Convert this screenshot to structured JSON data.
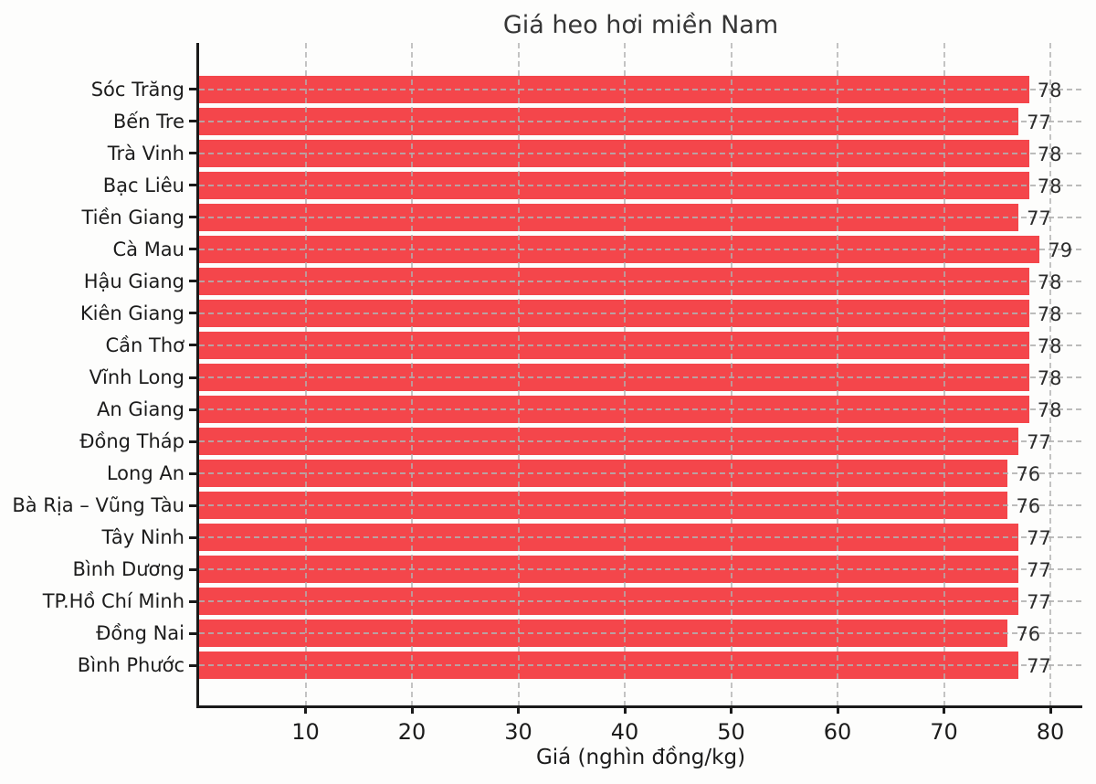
{
  "chart_data": {
    "type": "bar",
    "orientation": "horizontal",
    "title": "Giá heo hơi miền Nam",
    "xlabel": "Giá (nghìn đồng/kg)",
    "categories": [
      "Sóc Trăng",
      "Bến Tre",
      "Trà Vinh",
      "Bạc Liêu",
      "Tiền Giang",
      "Cà Mau",
      "Hậu Giang",
      "Kiên Giang",
      "Cần Thơ",
      "Vĩnh Long",
      "An Giang",
      "Đồng Tháp",
      "Long An",
      "Bà Rịa – Vũng Tàu",
      "Tây Ninh",
      "Bình Dương",
      "TP.Hồ Chí Minh",
      "Đồng Nai",
      "Bình Phước"
    ],
    "values": [
      78,
      77,
      78,
      78,
      77,
      79,
      78,
      78,
      78,
      78,
      78,
      77,
      76,
      76,
      77,
      77,
      77,
      76,
      77
    ],
    "value_labels": [
      "78",
      "77",
      "78",
      "78",
      "77",
      "79",
      "78",
      "78",
      "78",
      "78",
      "78",
      "77",
      "76",
      "76",
      "77",
      "77",
      "77",
      "76",
      "77"
    ],
    "xlim": [
      0,
      83
    ],
    "xticks": [
      10,
      20,
      30,
      40,
      50,
      60,
      70,
      80
    ],
    "grid": "dashed-both-axes-over-bars",
    "legend": "none",
    "colors": {
      "bar": "#f4464b",
      "grid": "#b0b0b0",
      "axis": "#1a1a1a",
      "title_text": "#363636",
      "tick_text": "#1c1c1c",
      "background": "#fdfdfc"
    }
  }
}
